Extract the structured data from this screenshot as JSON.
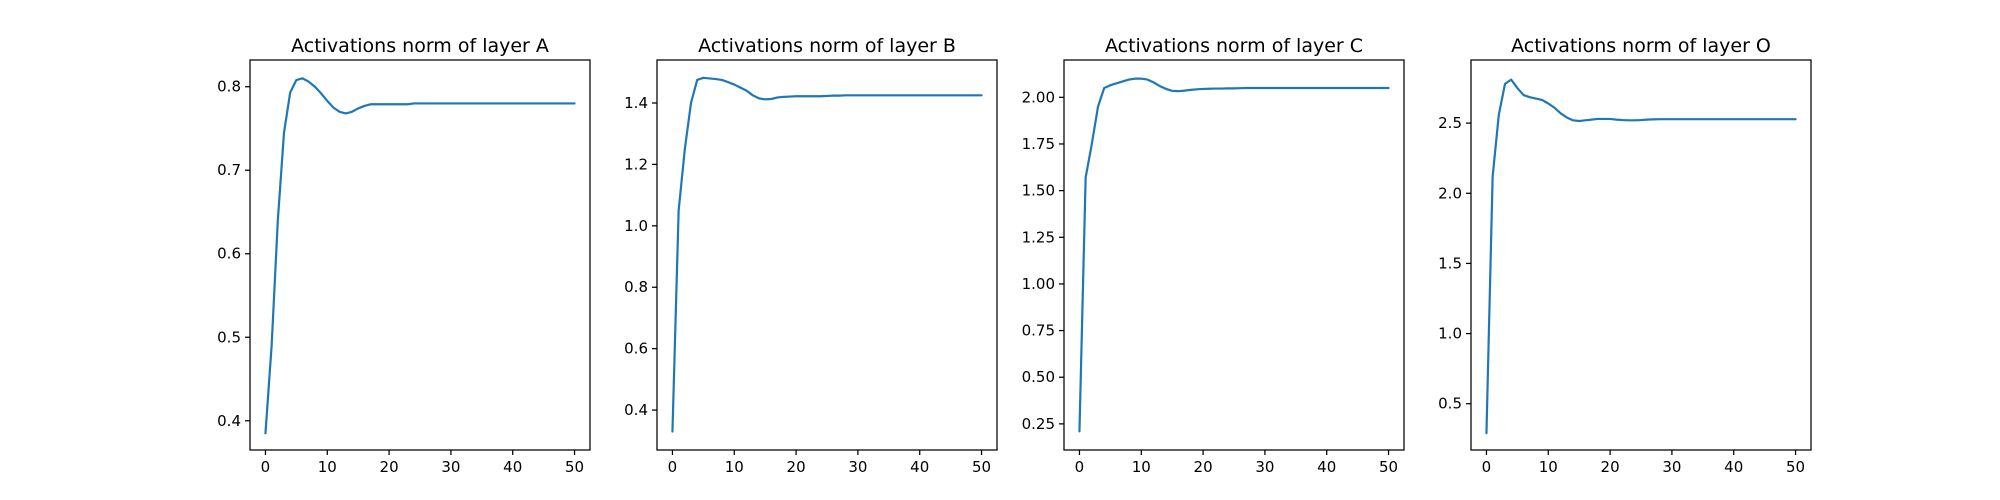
{
  "figure": {
    "background": "#ffffff",
    "line_color": "#1f77b4"
  },
  "chart_data": [
    {
      "type": "line",
      "title": "Activations norm of layer A",
      "xlabel": "",
      "ylabel": "",
      "xlim": [
        -2.5,
        52.5
      ],
      "ylim": [
        0.365,
        0.832
      ],
      "xticks": [
        0,
        10,
        20,
        30,
        40,
        50
      ],
      "yticks": [
        0.4,
        0.5,
        0.6,
        0.7,
        0.8
      ],
      "yticklabels": [
        "0.4",
        "0.5",
        "0.6",
        "0.7",
        "0.8"
      ],
      "grid": false,
      "legend": "none",
      "series": [
        {
          "x": [
            0,
            1,
            2,
            3,
            4,
            5,
            6,
            7,
            8,
            9,
            10,
            11,
            12,
            13,
            14,
            15,
            16,
            17,
            18,
            19,
            20,
            21,
            22,
            23,
            24,
            25,
            26,
            27,
            28,
            29,
            30,
            32,
            34,
            36,
            38,
            40,
            42,
            44,
            46,
            48,
            50
          ],
          "y": [
            0.385,
            0.49,
            0.64,
            0.745,
            0.793,
            0.808,
            0.81,
            0.806,
            0.8,
            0.792,
            0.783,
            0.775,
            0.77,
            0.768,
            0.77,
            0.774,
            0.777,
            0.779,
            0.779,
            0.779,
            0.779,
            0.779,
            0.779,
            0.779,
            0.78,
            0.78,
            0.78,
            0.78,
            0.78,
            0.78,
            0.78,
            0.78,
            0.78,
            0.78,
            0.78,
            0.78,
            0.78,
            0.78,
            0.78,
            0.78,
            0.78
          ]
        }
      ]
    },
    {
      "type": "line",
      "title": "Activations norm of layer B",
      "xlabel": "",
      "ylabel": "",
      "xlim": [
        -2.5,
        52.5
      ],
      "ylim": [
        0.27,
        1.54
      ],
      "xticks": [
        0,
        10,
        20,
        30,
        40,
        50
      ],
      "yticks": [
        0.4,
        0.6,
        0.8,
        1.0,
        1.2,
        1.4
      ],
      "yticklabels": [
        "0.4",
        "0.6",
        "0.8",
        "1.0",
        "1.2",
        "1.4"
      ],
      "grid": false,
      "legend": "none",
      "series": [
        {
          "x": [
            0,
            1,
            2,
            3,
            4,
            5,
            6,
            7,
            8,
            9,
            10,
            11,
            12,
            13,
            14,
            15,
            16,
            17,
            18,
            19,
            20,
            21,
            22,
            23,
            24,
            25,
            26,
            27,
            28,
            29,
            30,
            32,
            34,
            36,
            38,
            40,
            42,
            44,
            46,
            48,
            50
          ],
          "y": [
            0.33,
            1.05,
            1.25,
            1.4,
            1.475,
            1.482,
            1.48,
            1.478,
            1.475,
            1.468,
            1.46,
            1.45,
            1.44,
            1.425,
            1.415,
            1.412,
            1.413,
            1.418,
            1.42,
            1.421,
            1.422,
            1.422,
            1.422,
            1.422,
            1.422,
            1.423,
            1.424,
            1.424,
            1.425,
            1.425,
            1.425,
            1.425,
            1.425,
            1.425,
            1.425,
            1.425,
            1.425,
            1.425,
            1.425,
            1.425,
            1.425
          ]
        }
      ]
    },
    {
      "type": "line",
      "title": "Activations norm of layer C",
      "xlabel": "",
      "ylabel": "",
      "xlim": [
        -2.5,
        52.5
      ],
      "ylim": [
        0.11,
        2.2
      ],
      "xticks": [
        0,
        10,
        20,
        30,
        40,
        50
      ],
      "yticks": [
        0.25,
        0.5,
        0.75,
        1.0,
        1.25,
        1.5,
        1.75,
        2.0
      ],
      "yticklabels": [
        "0.25",
        "0.50",
        "0.75",
        "1.00",
        "1.25",
        "1.50",
        "1.75",
        "2.00"
      ],
      "grid": false,
      "legend": "none",
      "series": [
        {
          "x": [
            0,
            1,
            2,
            3,
            4,
            5,
            6,
            7,
            8,
            9,
            10,
            11,
            12,
            13,
            14,
            15,
            16,
            17,
            18,
            19,
            20,
            21,
            22,
            23,
            24,
            25,
            26,
            27,
            28,
            29,
            30,
            32,
            34,
            36,
            38,
            40,
            42,
            44,
            46,
            48,
            50
          ],
          "y": [
            0.21,
            1.57,
            1.75,
            1.95,
            2.05,
            2.065,
            2.075,
            2.085,
            2.095,
            2.1,
            2.1,
            2.095,
            2.08,
            2.06,
            2.045,
            2.035,
            2.033,
            2.036,
            2.04,
            2.043,
            2.045,
            2.046,
            2.047,
            2.047,
            2.048,
            2.048,
            2.049,
            2.05,
            2.05,
            2.05,
            2.05,
            2.05,
            2.05,
            2.05,
            2.05,
            2.05,
            2.05,
            2.05,
            2.05,
            2.05,
            2.05
          ]
        }
      ]
    },
    {
      "type": "line",
      "title": "Activations norm of layer O",
      "xlabel": "",
      "ylabel": "",
      "xlim": [
        -2.5,
        52.5
      ],
      "ylim": [
        0.17,
        2.95
      ],
      "xticks": [
        0,
        10,
        20,
        30,
        40,
        50
      ],
      "yticks": [
        0.5,
        1.0,
        1.5,
        2.0,
        2.5
      ],
      "yticklabels": [
        "0.5",
        "1.0",
        "1.5",
        "2.0",
        "2.5"
      ],
      "grid": false,
      "legend": "none",
      "series": [
        {
          "x": [
            0,
            1,
            2,
            3,
            4,
            5,
            6,
            7,
            8,
            9,
            10,
            11,
            12,
            13,
            14,
            15,
            16,
            17,
            18,
            19,
            20,
            21,
            22,
            23,
            24,
            25,
            26,
            27,
            28,
            29,
            30,
            32,
            34,
            36,
            38,
            40,
            42,
            44,
            46,
            48,
            50
          ],
          "y": [
            0.29,
            2.12,
            2.56,
            2.78,
            2.81,
            2.75,
            2.7,
            2.685,
            2.675,
            2.665,
            2.64,
            2.61,
            2.57,
            2.54,
            2.52,
            2.515,
            2.52,
            2.525,
            2.53,
            2.53,
            2.53,
            2.525,
            2.522,
            2.52,
            2.52,
            2.522,
            2.525,
            2.527,
            2.528,
            2.528,
            2.528,
            2.528,
            2.528,
            2.528,
            2.528,
            2.528,
            2.528,
            2.528,
            2.528,
            2.528,
            2.528
          ]
        }
      ]
    }
  ]
}
